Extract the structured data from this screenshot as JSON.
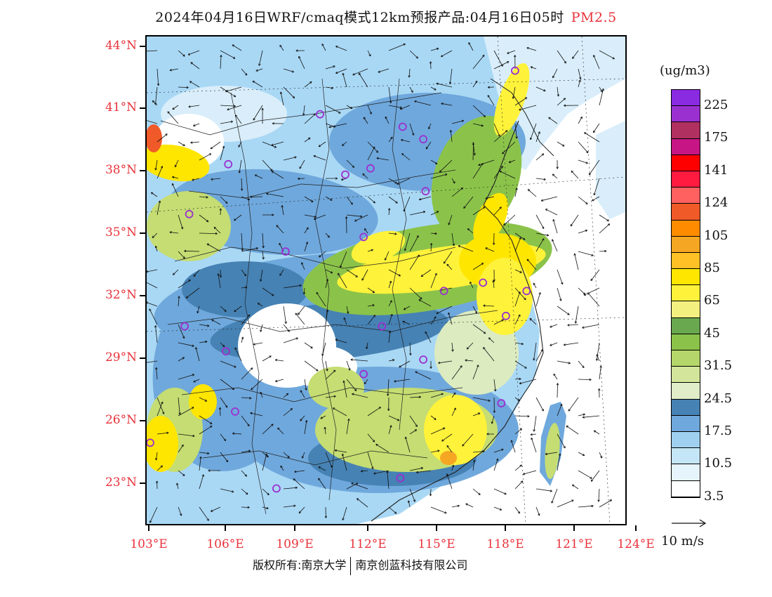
{
  "title": {
    "main": "2024年04月16日WRF/cmaq模式12km预报产品:04月16日05时",
    "species": "PM2.5"
  },
  "axes": {
    "lat_labels": [
      "44°N",
      "41°N",
      "38°N",
      "35°N",
      "32°N",
      "29°N",
      "26°N",
      "23°N"
    ],
    "lon_labels": [
      "103°E",
      "106°E",
      "109°E",
      "112°E",
      "115°E",
      "118°E",
      "121°E",
      "124°E"
    ]
  },
  "legend": {
    "unit": "(ug/m3)",
    "levels": [
      "225",
      "175",
      "141",
      "124",
      "105",
      "85",
      "65",
      "45",
      "31.5",
      "24.5",
      "17.5",
      "10.5",
      "3.5"
    ],
    "colors": [
      "#8a2be2",
      "#9b30d0",
      "#b03060",
      "#c71585",
      "#ff0000",
      "#ff1a40",
      "#ff6060",
      "#f05a28",
      "#ff8c00",
      "#f5a623",
      "#ffc125",
      "#ffe600",
      "#fff23a",
      "#f4f080",
      "#6aa84f",
      "#8bc34a",
      "#b5d66a",
      "#d2e59a",
      "#e0edc8",
      "#4682b4",
      "#6fa8dc",
      "#9fd0f0",
      "#c5e6f7",
      "#e6f4fc",
      "#ffffff"
    ]
  },
  "wind_reference": {
    "label": "10 m/s"
  },
  "copyright": {
    "left": "版权所有:南京大学",
    "right": "南京创蓝科技有限公司"
  },
  "map": {
    "colors": {
      "white": "#ffffff",
      "pale_blue": "#d9eefa",
      "light_blue": "#a9d8f5",
      "blue": "#6fa8dc",
      "steel_blue": "#4682b4",
      "pale_green": "#dcebc0",
      "yellow_green": "#c5dd72",
      "green": "#8bc34a",
      "yellow": "#fff23a",
      "gold": "#ffe600",
      "orange": "#f5a623",
      "dark_orange": "#f05a28",
      "marker": "#9b30d0"
    },
    "stations": [
      {
        "lon": 118.9,
        "lat": 42.9
      },
      {
        "lon": 110.4,
        "lat": 40.8
      },
      {
        "lon": 114.0,
        "lat": 40.2
      },
      {
        "lon": 114.9,
        "lat": 39.6
      },
      {
        "lon": 106.4,
        "lat": 38.4
      },
      {
        "lon": 111.5,
        "lat": 37.9
      },
      {
        "lon": 112.6,
        "lat": 38.2
      },
      {
        "lon": 115.0,
        "lat": 37.1
      },
      {
        "lon": 104.7,
        "lat": 36.0
      },
      {
        "lon": 112.3,
        "lat": 34.9
      },
      {
        "lon": 108.9,
        "lat": 34.2
      },
      {
        "lon": 117.5,
        "lat": 32.7
      },
      {
        "lon": 115.8,
        "lat": 32.3
      },
      {
        "lon": 119.4,
        "lat": 32.3
      },
      {
        "lon": 118.5,
        "lat": 31.1
      },
      {
        "lon": 113.1,
        "lat": 30.6
      },
      {
        "lon": 104.5,
        "lat": 30.6
      },
      {
        "lon": 106.3,
        "lat": 29.4
      },
      {
        "lon": 114.9,
        "lat": 29.0
      },
      {
        "lon": 112.3,
        "lat": 28.3
      },
      {
        "lon": 118.3,
        "lat": 26.9
      },
      {
        "lon": 106.7,
        "lat": 26.5
      },
      {
        "lon": 103.0,
        "lat": 25.0
      },
      {
        "lon": 113.9,
        "lat": 23.3
      },
      {
        "lon": 108.5,
        "lat": 22.8
      }
    ]
  }
}
